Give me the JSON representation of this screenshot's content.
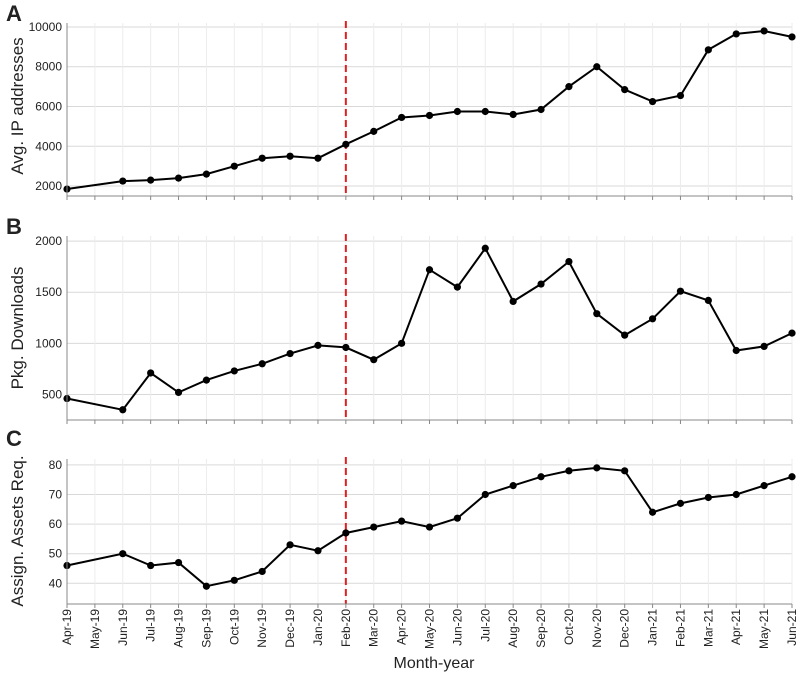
{
  "x_categories": [
    "Apr-19",
    "May-19",
    "Jun-19",
    "Jul-19",
    "Aug-19",
    "Sep-19",
    "Oct-19",
    "Nov-19",
    "Dec-19",
    "Jan-20",
    "Feb-20",
    "Mar-20",
    "Apr-20",
    "May-20",
    "Jun-20",
    "Jul-20",
    "Aug-20",
    "Sep-20",
    "Oct-20",
    "Nov-20",
    "Dec-20",
    "Jan-21",
    "Feb-21",
    "Mar-21",
    "Apr-21",
    "May-21",
    "Jun-21"
  ],
  "xlabel": "Month-year",
  "marker_category": "Feb-20",
  "colors": {
    "line": "#000000",
    "marker": "#000000",
    "grid": "#d9d9d9",
    "axis": "#888888",
    "event_line": "#e02020"
  },
  "chart_data": [
    {
      "panel": "A",
      "type": "line",
      "ylabel": "Avg. IP addresses",
      "ylim": [
        1500,
        10200
      ],
      "yticks": [
        2000,
        4000,
        6000,
        8000,
        10000
      ],
      "grid": true,
      "points": [
        {
          "x": "Apr-19",
          "y": 1850
        },
        {
          "x": "Jun-19",
          "y": 2250
        },
        {
          "x": "Jul-19",
          "y": 2300
        },
        {
          "x": "Aug-19",
          "y": 2400
        },
        {
          "x": "Sep-19",
          "y": 2600
        },
        {
          "x": "Oct-19",
          "y": 3000
        },
        {
          "x": "Nov-19",
          "y": 3400
        },
        {
          "x": "Dec-19",
          "y": 3500
        },
        {
          "x": "Jan-20",
          "y": 3400
        },
        {
          "x": "Feb-20",
          "y": 4100
        },
        {
          "x": "Mar-20",
          "y": 4750
        },
        {
          "x": "Apr-20",
          "y": 5450
        },
        {
          "x": "May-20",
          "y": 5550
        },
        {
          "x": "Jun-20",
          "y": 5750
        },
        {
          "x": "Jul-20",
          "y": 5750
        },
        {
          "x": "Aug-20",
          "y": 5600
        },
        {
          "x": "Sep-20",
          "y": 5850
        },
        {
          "x": "Oct-20",
          "y": 7000
        },
        {
          "x": "Nov-20",
          "y": 8000
        },
        {
          "x": "Dec-20",
          "y": 6850
        },
        {
          "x": "Jan-21",
          "y": 6250
        },
        {
          "x": "Feb-21",
          "y": 6550
        },
        {
          "x": "Mar-21",
          "y": 8850
        },
        {
          "x": "Apr-21",
          "y": 9650
        },
        {
          "x": "May-21",
          "y": 9800
        },
        {
          "x": "Jun-21",
          "y": 9500
        }
      ]
    },
    {
      "panel": "B",
      "type": "line",
      "ylabel": "Pkg. Downloads",
      "ylim": [
        250,
        2050
      ],
      "yticks": [
        500,
        1000,
        1500,
        2000
      ],
      "grid": true,
      "points": [
        {
          "x": "Apr-19",
          "y": 460
        },
        {
          "x": "Jun-19",
          "y": 350
        },
        {
          "x": "Jul-19",
          "y": 710
        },
        {
          "x": "Aug-19",
          "y": 520
        },
        {
          "x": "Sep-19",
          "y": 640
        },
        {
          "x": "Oct-19",
          "y": 730
        },
        {
          "x": "Nov-19",
          "y": 800
        },
        {
          "x": "Dec-19",
          "y": 900
        },
        {
          "x": "Jan-20",
          "y": 980
        },
        {
          "x": "Feb-20",
          "y": 960
        },
        {
          "x": "Mar-20",
          "y": 840
        },
        {
          "x": "Apr-20",
          "y": 1000
        },
        {
          "x": "May-20",
          "y": 1720
        },
        {
          "x": "Jun-20",
          "y": 1550
        },
        {
          "x": "Jul-20",
          "y": 1930
        },
        {
          "x": "Aug-20",
          "y": 1410
        },
        {
          "x": "Sep-20",
          "y": 1580
        },
        {
          "x": "Oct-20",
          "y": 1800
        },
        {
          "x": "Nov-20",
          "y": 1290
        },
        {
          "x": "Dec-20",
          "y": 1080
        },
        {
          "x": "Jan-21",
          "y": 1240
        },
        {
          "x": "Feb-21",
          "y": 1510
        },
        {
          "x": "Mar-21",
          "y": 1420
        },
        {
          "x": "Apr-21",
          "y": 930
        },
        {
          "x": "May-21",
          "y": 970
        },
        {
          "x": "Jun-21",
          "y": 1100
        }
      ]
    },
    {
      "panel": "C",
      "type": "line",
      "ylabel": "Assign. Assets Req.",
      "ylim": [
        33,
        82
      ],
      "yticks": [
        40,
        50,
        60,
        70,
        80
      ],
      "grid": true,
      "points": [
        {
          "x": "Apr-19",
          "y": 46
        },
        {
          "x": "Jun-19",
          "y": 50
        },
        {
          "x": "Jul-19",
          "y": 46
        },
        {
          "x": "Aug-19",
          "y": 47
        },
        {
          "x": "Sep-19",
          "y": 39
        },
        {
          "x": "Oct-19",
          "y": 41
        },
        {
          "x": "Nov-19",
          "y": 44
        },
        {
          "x": "Dec-19",
          "y": 53
        },
        {
          "x": "Jan-20",
          "y": 51
        },
        {
          "x": "Feb-20",
          "y": 57
        },
        {
          "x": "Mar-20",
          "y": 59
        },
        {
          "x": "Apr-20",
          "y": 61
        },
        {
          "x": "May-20",
          "y": 59
        },
        {
          "x": "Jun-20",
          "y": 62
        },
        {
          "x": "Jul-20",
          "y": 70
        },
        {
          "x": "Aug-20",
          "y": 73
        },
        {
          "x": "Sep-20",
          "y": 76
        },
        {
          "x": "Oct-20",
          "y": 78
        },
        {
          "x": "Nov-20",
          "y": 79
        },
        {
          "x": "Dec-20",
          "y": 78
        },
        {
          "x": "Jan-21",
          "y": 64
        },
        {
          "x": "Feb-21",
          "y": 67
        },
        {
          "x": "Mar-21",
          "y": 69
        },
        {
          "x": "Apr-21",
          "y": 70
        },
        {
          "x": "May-21",
          "y": 73
        },
        {
          "x": "Jun-21",
          "y": 76
        }
      ]
    }
  ]
}
